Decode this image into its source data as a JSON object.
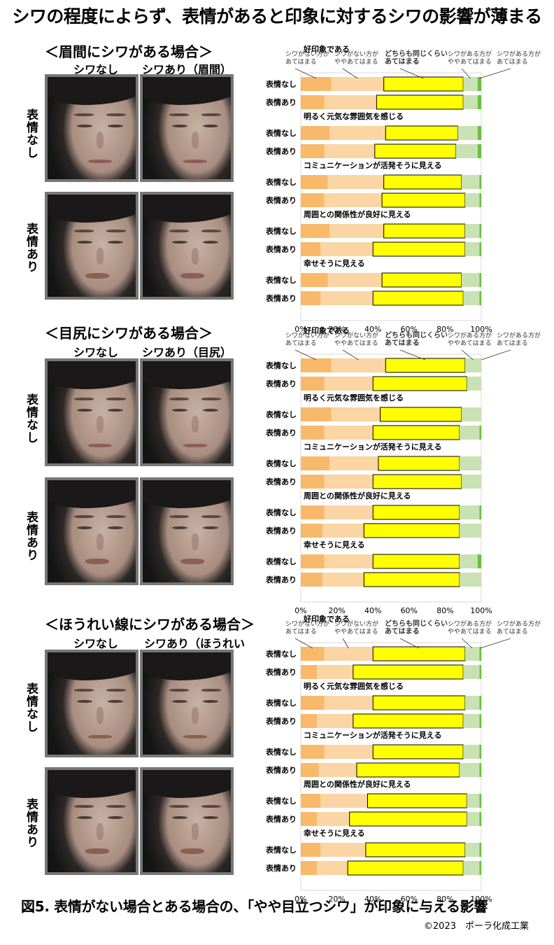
{
  "title": "シワの程度によらず、表情があると印象に対するシワの影響が薄まる",
  "caption": "図5. 表情がない場合とある場合の、「やや目立つシワ」が印象に与える影響",
  "copyright": "©2023　ポーラ化成工業",
  "sections": [
    {
      "title": "＜眉間にシワがある場合＞",
      "col_left": "シワなし",
      "col_right": "シワあり（眉間）",
      "row_top": "表情なし",
      "row_bottom": "表情あり"
    },
    {
      "title": "＜目尻にシワがある場合＞",
      "col_left": "シワなし",
      "col_right": "シワあり（目尻）",
      "row_top": "表情なし",
      "row_bottom": "表情あり"
    },
    {
      "title": "＜ほうれい線にシワがある場合＞",
      "col_left": "シワなし",
      "col_right": "シワあり（ほうれい線）",
      "row_top": "表情なし",
      "row_bottom": "表情あり"
    }
  ],
  "colors": {
    "c1": "#f8b96b",
    "c2": "#fbd5a4",
    "c3": "#ffff00",
    "c4": "#c9e2b4",
    "c5": "#6abf3f",
    "c3_border": "#000000"
  },
  "chart_data": [
    {
      "type": "bar",
      "stacked": true,
      "orientation": "horizontal",
      "legend_labels": [
        "シワがない方が\nあてはまる",
        "シワがない方が\nややあてはまる",
        "どちらも同じくらい\nあてはまる",
        "シワがある方が\nややあてはまる",
        "シワがある方が\nあてはまる"
      ],
      "row_labels": [
        "表情なし",
        "表情あり"
      ],
      "groups": [
        {
          "name": "好印象である",
          "rows": [
            [
              17,
              29,
              44,
              8,
              2
            ],
            [
              13,
              29,
              48,
              8,
              2
            ]
          ]
        },
        {
          "name": "明るく元気な雰囲気を感じる",
          "rows": [
            [
              16,
              31,
              40,
              11,
              2
            ],
            [
              13,
              28,
              45,
              12,
              2
            ]
          ]
        },
        {
          "name": "コミュニケーションが活発そうに見える",
          "rows": [
            [
              15,
              31,
              43,
              10,
              1
            ],
            [
              13,
              32,
              46,
              8,
              1
            ]
          ]
        },
        {
          "name": "周囲との関係性が良好に見える",
          "rows": [
            [
              16,
              30,
              45,
              8,
              1
            ],
            [
              11,
              29,
              51,
              8,
              1
            ]
          ]
        },
        {
          "name": "幸せそうに見える",
          "rows": [
            [
              15,
              30,
              44,
              10,
              1
            ],
            [
              11,
              29,
              50,
              9,
              1
            ]
          ]
        }
      ],
      "xlim": [
        0,
        100
      ],
      "xticks": [
        "0%",
        "20%",
        "40%",
        "60%",
        "80%",
        "100%"
      ]
    },
    {
      "type": "bar",
      "stacked": true,
      "orientation": "horizontal",
      "legend_labels": [
        "シワがない方が\nあてはまる",
        "シワがない方が\nややあてはまる",
        "どちらも同じくらい\nあてはまる",
        "シワがある方が\nややあてはまる",
        "シワがある方が\nあてはまる"
      ],
      "row_labels": [
        "表情なし",
        "表情あり"
      ],
      "groups": [
        {
          "name": "好印象である",
          "rows": [
            [
              17,
              30,
              44,
              9,
              0
            ],
            [
              13,
              27,
              52,
              8,
              0
            ]
          ]
        },
        {
          "name": "明るく元気な雰囲気を感じる",
          "rows": [
            [
              17,
              27,
              45,
              11,
              0
            ],
            [
              13,
              27,
              48,
              11,
              1
            ]
          ]
        },
        {
          "name": "コミュニケーションが活発そうに見える",
          "rows": [
            [
              16,
              27,
              45,
              12,
              0
            ],
            [
              13,
              27,
              49,
              11,
              0
            ]
          ]
        },
        {
          "name": "周囲との関係性が良好に見える",
          "rows": [
            [
              13,
              27,
              48,
              11,
              1
            ],
            [
              12,
              23,
              53,
              12,
              0
            ]
          ]
        },
        {
          "name": "幸せそうに見える",
          "rows": [
            [
              13,
              27,
              48,
              10,
              2
            ],
            [
              12,
              23,
              53,
              12,
              0
            ]
          ]
        }
      ],
      "xlim": [
        0,
        100
      ],
      "xticks": [
        "0%",
        "20%",
        "40%",
        "60%",
        "80%",
        "100%"
      ]
    },
    {
      "type": "bar",
      "stacked": true,
      "orientation": "horizontal",
      "legend_labels": [
        "シワがない方が\nあてはまる",
        "シワがない方が\nややあてはまる",
        "どちらも同じくらい\nあてはまる",
        "シワがある方が\nややあてはまる",
        "シワがある方が\nあてはまる"
      ],
      "row_labels": [
        "表情なし",
        "表情あり"
      ],
      "groups": [
        {
          "name": "好印象である",
          "rows": [
            [
              13,
              27,
              51,
              8,
              1
            ],
            [
              9,
              20,
              61,
              9,
              1
            ]
          ]
        },
        {
          "name": "明るく元気な雰囲気を感じる",
          "rows": [
            [
              13,
              27,
              51,
              8,
              1
            ],
            [
              9,
              20,
              61,
              9,
              1
            ]
          ]
        },
        {
          "name": "コミュニケーションが活発そうに見える",
          "rows": [
            [
              13,
              27,
              50,
              9,
              1
            ],
            [
              10,
              21,
              57,
              11,
              1
            ]
          ]
        },
        {
          "name": "周囲との関係性が良好に見える",
          "rows": [
            [
              11,
              26,
              55,
              7,
              1
            ],
            [
              9,
              18,
              65,
              7,
              1
            ]
          ]
        },
        {
          "name": "幸せそうに見える",
          "rows": [
            [
              11,
              25,
              55,
              8,
              1
            ],
            [
              9,
              17,
              64,
              9,
              1
            ]
          ]
        }
      ],
      "xlim": [
        0,
        100
      ],
      "xticks": [
        "0%",
        "20%",
        "40%",
        "60%",
        "80%",
        "100%"
      ]
    }
  ]
}
